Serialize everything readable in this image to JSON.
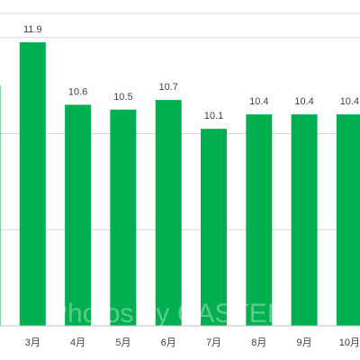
{
  "chart_data": {
    "type": "bar",
    "categories": [
      "",
      "3月",
      "4月",
      "5月",
      "6月",
      "7月",
      "8月",
      "9月",
      "10月"
    ],
    "values": [
      11.0,
      11.9,
      10.6,
      10.5,
      10.7,
      10.1,
      10.4,
      10.4,
      10.4
    ],
    "data_labels": [
      "",
      "11.9",
      "10.6",
      "10.5",
      "10.7",
      "10.1",
      "10.4",
      "10.4",
      "10.4"
    ],
    "bar_color": "#00b050",
    "grid": true,
    "gridline_color": "#d9d9d9",
    "ylim": [
      6,
      12.5
    ]
  },
  "watermark": "Photos by CASTEL"
}
